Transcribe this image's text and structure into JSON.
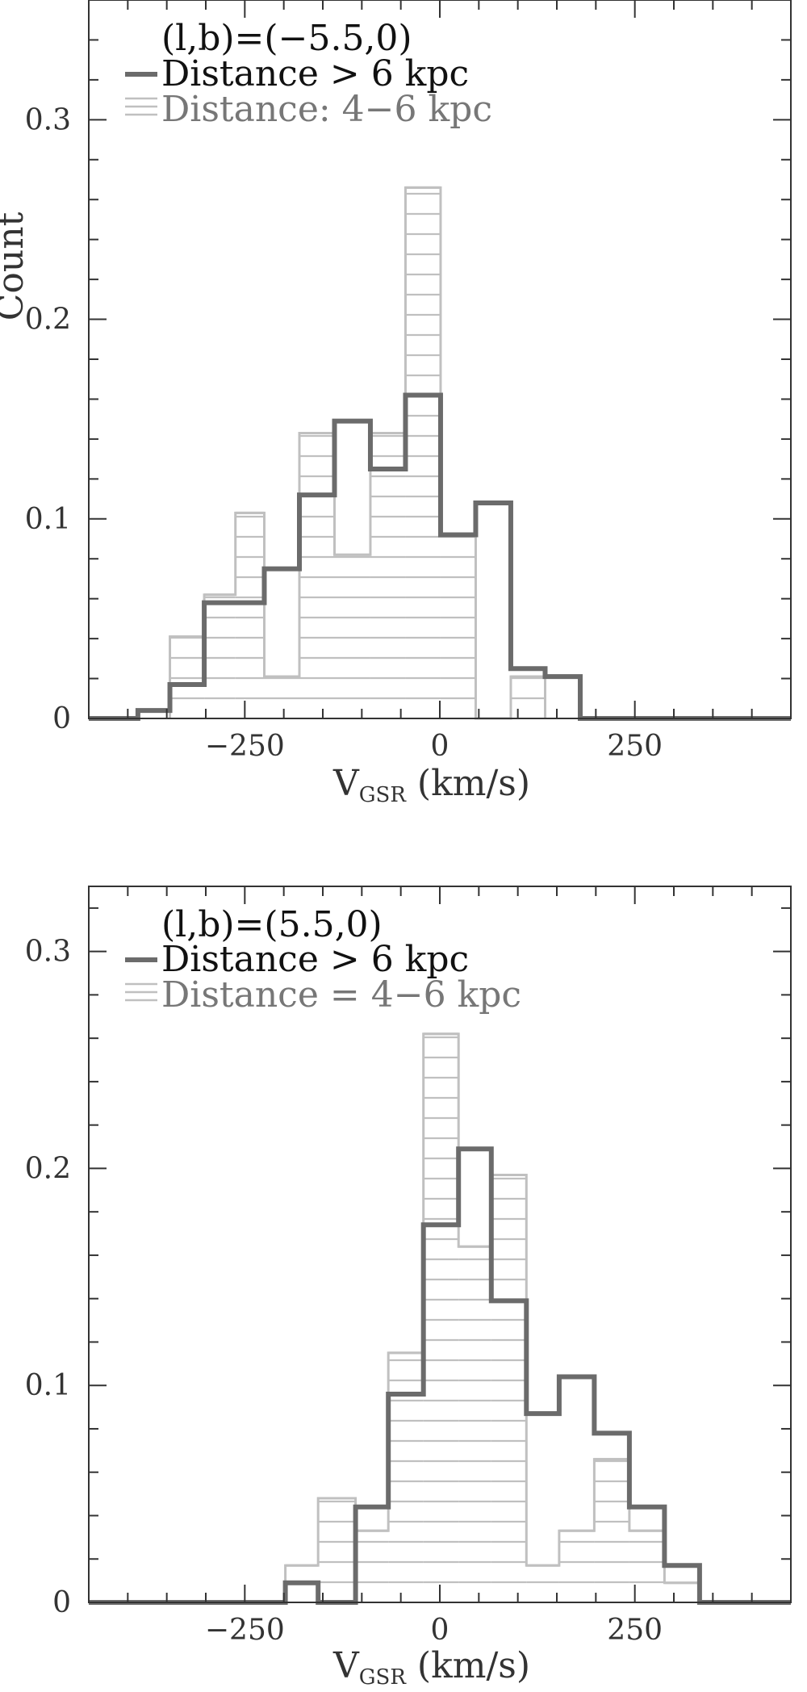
{
  "colors": {
    "primary": "#6b6b6b",
    "secondary": "#c0c0c0",
    "frame": "#333333",
    "legend_primary_text": "#111111",
    "legend_secondary_text": "#777777"
  },
  "chart_data": [
    {
      "type": "bar",
      "histogram": true,
      "legend_title": "(l,b)=(−5.5,0)",
      "xlabel": "V",
      "xlabel_sub": "GSR",
      "xlabel_unit": "(km/s)",
      "ylabel": "Count",
      "xlim": [
        -450,
        450
      ],
      "ylim": [
        0,
        0.36
      ],
      "x_ticks": [
        -250,
        0,
        250
      ],
      "x_tick_labels": [
        "−250",
        "0",
        "250"
      ],
      "y_ticks": [
        0,
        0.1,
        0.2,
        0.3
      ],
      "y_tick_labels": [
        "0",
        "0.1",
        "0.2",
        "0.3"
      ],
      "legend_position": "top-left",
      "series": [
        {
          "name": "Distance > 6 kpc",
          "style": "thick-dark-step",
          "edges": [
            -450,
            -387,
            -346,
            -302,
            -225,
            -180,
            -135,
            -89,
            -44,
            1,
            46,
            91,
            135,
            180,
            450
          ],
          "values": [
            0,
            0.004,
            0.017,
            0.058,
            0.075,
            0.112,
            0.149,
            0.125,
            0.162,
            0.092,
            0.108,
            0.025,
            0.021,
            0
          ]
        },
        {
          "name": "Distance: 4−6 kpc",
          "style": "light-hatched",
          "edges": [
            -346,
            -302,
            -262,
            -225,
            -180,
            -135,
            -89,
            -44,
            1,
            46,
            91,
            135
          ],
          "values": [
            0.041,
            0.062,
            0.103,
            0.021,
            0.143,
            0.082,
            0.143,
            0.266,
            0.092,
            0,
            0.021
          ]
        }
      ]
    },
    {
      "type": "bar",
      "histogram": true,
      "legend_title": "(l,b)=(5.5,0)",
      "xlabel": "V",
      "xlabel_sub": "GSR",
      "xlabel_unit": "(km/s)",
      "ylabel": "",
      "xlim": [
        -450,
        450
      ],
      "ylim": [
        0,
        0.33
      ],
      "x_ticks": [
        -250,
        0,
        250
      ],
      "x_tick_labels": [
        "−250",
        "0",
        "250"
      ],
      "y_ticks": [
        0,
        0.1,
        0.2,
        0.3
      ],
      "y_tick_labels": [
        "0",
        "0.1",
        "0.2",
        "0.3"
      ],
      "legend_position": "top-left",
      "series": [
        {
          "name": "Distance > 6 kpc",
          "style": "thick-dark-step",
          "edges": [
            -450,
            -198,
            -156,
            -108,
            -66,
            -21,
            24,
            66,
            111,
            153,
            198,
            243,
            288,
            333,
            450
          ],
          "values": [
            0,
            0.009,
            0,
            0.044,
            0.096,
            0.174,
            0.209,
            0.139,
            0.087,
            0.104,
            0.078,
            0.044,
            0.017,
            0
          ]
        },
        {
          "name": "Distance = 4−6 kpc",
          "style": "light-hatched",
          "edges": [
            -198,
            -156,
            -108,
            -66,
            -21,
            24,
            66,
            111,
            153,
            198,
            243,
            288,
            333
          ],
          "values": [
            0.017,
            0.048,
            0.033,
            0.115,
            0.262,
            0.164,
            0.197,
            0.017,
            0.033,
            0.066,
            0.033,
            0.009
          ]
        }
      ]
    }
  ]
}
